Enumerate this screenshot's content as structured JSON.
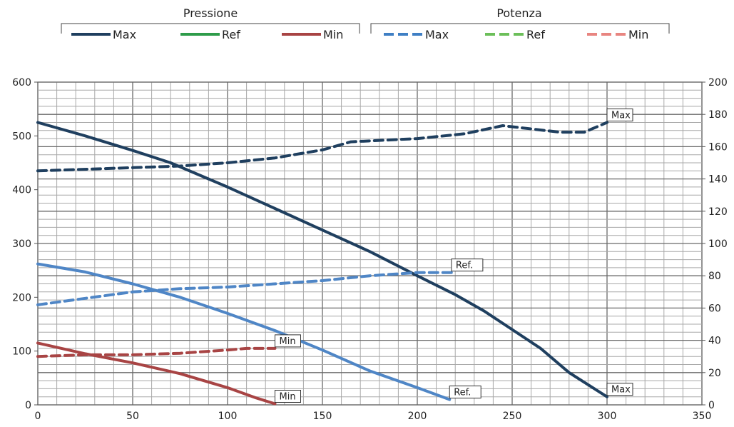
{
  "chart_data": {
    "type": "line",
    "title": "",
    "xlabel": "",
    "ylabel": "",
    "xlim": [
      0,
      350
    ],
    "ylim": [
      0,
      600
    ],
    "y2lim": [
      0,
      200
    ],
    "x_ticks": [
      0,
      50,
      100,
      150,
      200,
      250,
      300,
      350
    ],
    "y_ticks": [
      0,
      100,
      200,
      300,
      400,
      500,
      600
    ],
    "y2_ticks": [
      0,
      20,
      40,
      60,
      80,
      100,
      120,
      140,
      160,
      180,
      200
    ],
    "grid": true,
    "legend": {
      "placement": "top",
      "groups": [
        {
          "title": "Pressione",
          "entries": [
            {
              "label": "Max",
              "color": "#1f3f5f",
              "style": "solid"
            },
            {
              "label": "Ref",
              "color": "#2e9c4a",
              "style": "solid"
            },
            {
              "label": "Min",
              "color": "#a84444",
              "style": "solid"
            }
          ]
        },
        {
          "title": "Potenza",
          "entries": [
            {
              "label": "Max",
              "color": "#3f7fc4",
              "style": "dashed"
            },
            {
              "label": "Ref",
              "color": "#6cbf5a",
              "style": "dashed"
            },
            {
              "label": "Min",
              "color": "#e88580",
              "style": "dashed"
            }
          ]
        }
      ]
    },
    "series": [
      {
        "group": "Pressione",
        "axis": "left",
        "style": "solid",
        "color": "#1f3f5f",
        "points": [
          [
            0,
            525
          ],
          [
            25,
            500
          ],
          [
            50,
            473
          ],
          [
            70,
            450
          ],
          [
            90,
            420
          ],
          [
            100,
            405
          ],
          [
            125,
            365
          ],
          [
            150,
            325
          ],
          [
            175,
            285
          ],
          [
            200,
            240
          ],
          [
            220,
            205
          ],
          [
            235,
            175
          ],
          [
            250,
            140
          ],
          [
            265,
            105
          ],
          [
            280,
            60
          ],
          [
            300,
            15
          ]
        ]
      },
      {
        "group": "Pressione",
        "axis": "left",
        "style": "solid",
        "color": "#4f86c6",
        "points": [
          [
            0,
            262
          ],
          [
            25,
            247
          ],
          [
            50,
            225
          ],
          [
            75,
            200
          ],
          [
            100,
            170
          ],
          [
            125,
            138
          ],
          [
            150,
            102
          ],
          [
            175,
            63
          ],
          [
            200,
            32
          ],
          [
            217,
            10
          ]
        ]
      },
      {
        "group": "Pressione",
        "axis": "left",
        "style": "solid",
        "color": "#a84444",
        "points": [
          [
            0,
            115
          ],
          [
            25,
            95
          ],
          [
            50,
            78
          ],
          [
            75,
            58
          ],
          [
            100,
            32
          ],
          [
            115,
            13
          ],
          [
            125,
            2
          ]
        ]
      },
      {
        "group": "Potenza",
        "axis": "right",
        "style": "dashed",
        "color": "#1f3f5f",
        "points": [
          [
            0,
            145
          ],
          [
            50,
            147
          ],
          [
            75,
            148
          ],
          [
            100,
            150
          ],
          [
            125,
            153
          ],
          [
            150,
            158
          ],
          [
            165,
            163
          ],
          [
            200,
            165
          ],
          [
            225,
            168
          ],
          [
            245,
            173
          ],
          [
            260,
            171
          ],
          [
            275,
            169
          ],
          [
            288,
            169
          ],
          [
            300,
            175
          ]
        ]
      },
      {
        "group": "Potenza",
        "axis": "right",
        "style": "dashed",
        "color": "#4f86c6",
        "points": [
          [
            0,
            62
          ],
          [
            25,
            66
          ],
          [
            50,
            70
          ],
          [
            75,
            72
          ],
          [
            100,
            73
          ],
          [
            125,
            75
          ],
          [
            150,
            77
          ],
          [
            175,
            80
          ],
          [
            200,
            82
          ],
          [
            218,
            82
          ]
        ]
      },
      {
        "group": "Potenza",
        "axis": "right",
        "style": "dashed",
        "color": "#a84444",
        "points": [
          [
            0,
            30
          ],
          [
            25,
            31
          ],
          [
            50,
            31
          ],
          [
            75,
            32
          ],
          [
            100,
            34
          ],
          [
            110,
            35
          ],
          [
            125,
            35
          ]
        ]
      }
    ],
    "annotations": [
      {
        "text": "Max",
        "x": 300,
        "y": 175,
        "axis": "right"
      },
      {
        "text": "Ref.",
        "x": 218,
        "y": 82,
        "axis": "right"
      },
      {
        "text": "Min",
        "x": 125,
        "y": 35,
        "axis": "right"
      },
      {
        "text": "Max",
        "x": 300,
        "y": 15,
        "axis": "left"
      },
      {
        "text": "Ref.",
        "x": 217,
        "y": 10,
        "axis": "left"
      },
      {
        "text": "Min",
        "x": 125,
        "y": 2,
        "axis": "left"
      }
    ]
  }
}
